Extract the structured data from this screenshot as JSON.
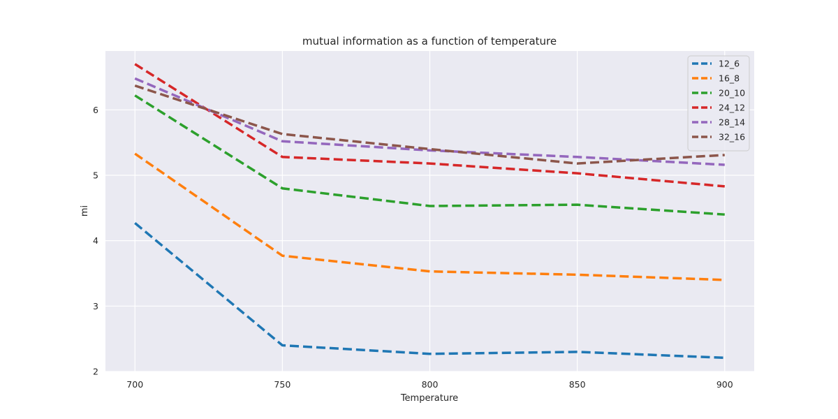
{
  "chart_data": {
    "type": "line",
    "title": "mutual information as a function of temperature",
    "xlabel": "Temperature",
    "ylabel": "mi",
    "x": [
      700,
      750,
      800,
      850,
      900
    ],
    "xticks": [
      700,
      750,
      800,
      850,
      900
    ],
    "yticks": [
      2,
      3,
      4,
      5,
      6
    ],
    "xlim": [
      690,
      910
    ],
    "ylim": [
      2.0,
      6.9
    ],
    "grid": true,
    "legend_position": "top-right",
    "line_style": "dashed",
    "background": "#eaeaf2",
    "series": [
      {
        "name": "12_6",
        "color": "#1f77b4",
        "values": [
          4.27,
          2.4,
          2.27,
          2.3,
          2.21
        ]
      },
      {
        "name": "16_8",
        "color": "#ff7f0e",
        "values": [
          5.33,
          3.77,
          3.53,
          3.48,
          3.4
        ]
      },
      {
        "name": "20_10",
        "color": "#2ca02c",
        "values": [
          6.22,
          4.8,
          4.53,
          4.55,
          4.4
        ]
      },
      {
        "name": "24_12",
        "color": "#d62728",
        "values": [
          6.7,
          5.28,
          5.18,
          5.03,
          4.83
        ]
      },
      {
        "name": "28_14",
        "color": "#9467bd",
        "values": [
          6.48,
          5.52,
          5.38,
          5.28,
          5.16
        ]
      },
      {
        "name": "32_16",
        "color": "#8c564b",
        "values": [
          6.37,
          5.63,
          5.4,
          5.18,
          5.31
        ]
      }
    ]
  }
}
